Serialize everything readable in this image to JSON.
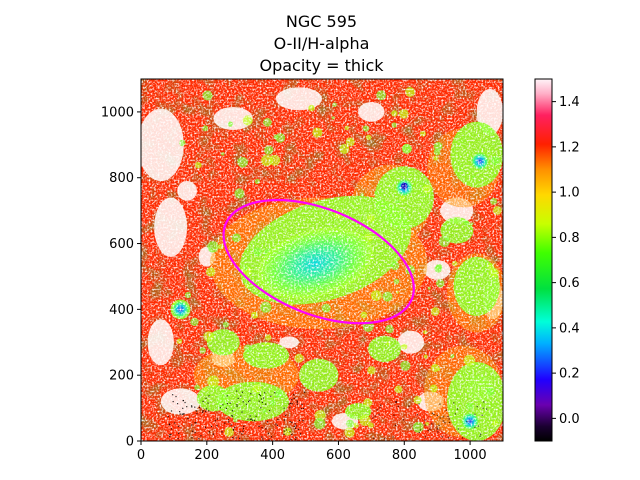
{
  "chart_data": {
    "type": "heatmap",
    "title": [
      "NGC 595",
      "O-II/H-alpha",
      "Opacity = thick"
    ],
    "xlabel": "",
    "ylabel": "",
    "xlim": [
      0,
      1100
    ],
    "ylim": [
      0,
      1100
    ],
    "x_ticks": [
      0,
      200,
      400,
      600,
      800,
      1000
    ],
    "y_ticks": [
      0,
      200,
      400,
      600,
      800,
      1000
    ],
    "colorbar": {
      "cmap": "gist_ncar-like (white high, red, yellow, green, cyan, blue, violet, black low)",
      "range": [
        -0.1,
        1.5
      ],
      "ticks": [
        0.0,
        0.2,
        0.4,
        0.6,
        0.8,
        1.0,
        1.2,
        1.4
      ],
      "tick_labels": [
        "0.0",
        "0.2",
        "0.4",
        "0.6",
        "0.8",
        "1.0",
        "1.2",
        "1.4"
      ]
    },
    "overlay_ellipse": {
      "center": [
        540,
        545
      ],
      "semi_axes": [
        305,
        160
      ],
      "angle_deg": -22,
      "color": "#ff00ff"
    },
    "features": [
      {
        "name": "central low-ratio region",
        "center": [
          550,
          540
        ],
        "value": 0.2
      },
      {
        "name": "compact low knot",
        "center": [
          800,
          770
        ],
        "value": 0.05
      },
      {
        "name": "south-east knot",
        "center": [
          1000,
          60
        ],
        "value": 0.3
      },
      {
        "name": "east knot",
        "center": [
          1030,
          850
        ],
        "value": 0.35
      },
      {
        "name": "west knot",
        "center": [
          120,
          400
        ],
        "value": 0.4
      }
    ]
  }
}
